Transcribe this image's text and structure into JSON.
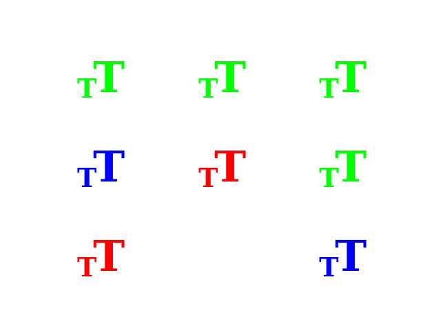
{
  "grid": {
    "rows": 3,
    "cols": 3,
    "cells": [
      {
        "small": "T",
        "large": "T",
        "color": "#00ff00",
        "present": true
      },
      {
        "small": "T",
        "large": "T",
        "color": "#00ff00",
        "present": true
      },
      {
        "small": "T",
        "large": "T",
        "color": "#00ff00",
        "present": true
      },
      {
        "small": "T",
        "large": "T",
        "color": "#0000ff",
        "present": true
      },
      {
        "small": "T",
        "large": "T",
        "color": "#ff0000",
        "present": true
      },
      {
        "small": "T",
        "large": "T",
        "color": "#00ff00",
        "present": true
      },
      {
        "small": "T",
        "large": "T",
        "color": "#ff0000",
        "present": true
      },
      {
        "small": "",
        "large": "",
        "color": "#ffffff",
        "present": false
      },
      {
        "small": "T",
        "large": "T",
        "color": "#0000ff",
        "present": true
      }
    ]
  }
}
